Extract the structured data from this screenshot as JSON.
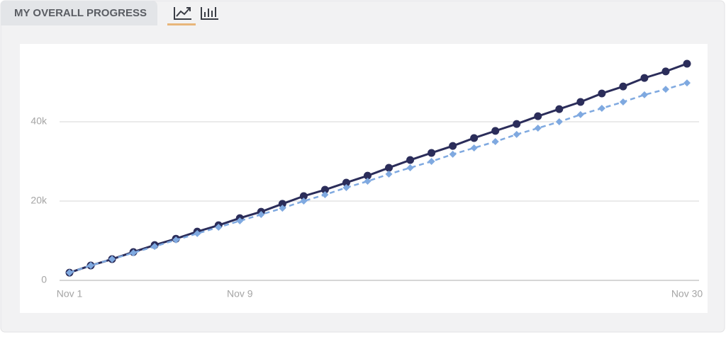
{
  "header": {
    "title": "MY OVERALL PROGRESS"
  },
  "chart_data": {
    "type": "line",
    "categories": [
      "Nov 1",
      null,
      null,
      null,
      null,
      null,
      null,
      null,
      "Nov 9",
      null,
      null,
      null,
      null,
      null,
      null,
      null,
      null,
      null,
      null,
      null,
      null,
      null,
      null,
      null,
      null,
      null,
      null,
      null,
      null,
      "Nov 30"
    ],
    "series": [
      {
        "color": "#2b2d5a",
        "marker": "circle",
        "dashed": false,
        "values": [
          1950,
          3750,
          5350,
          7150,
          8900,
          10500,
          12300,
          13900,
          15700,
          17300,
          19300,
          21250,
          22850,
          24650,
          26400,
          28400,
          30350,
          32150,
          33900,
          35900,
          37700,
          39450,
          41400,
          43200,
          45000,
          47150,
          48900,
          51050,
          52700,
          54650
        ]
      },
      {
        "color": "#7fa9e0",
        "marker": "diamond",
        "dashed": true,
        "values": [
          1950,
          3750,
          5350,
          6950,
          8550,
          10200,
          11800,
          13400,
          15000,
          16600,
          18200,
          20000,
          21600,
          23400,
          25000,
          26800,
          28400,
          30000,
          31800,
          33400,
          35000,
          36800,
          38400,
          40000,
          41800,
          43400,
          45000,
          46800,
          48200,
          49800
        ]
      }
    ],
    "ylim": [
      0,
      60000
    ],
    "yticks": [
      0,
      {
        "value": 20000,
        "label": "20k"
      },
      {
        "value": 40000,
        "label": "40k"
      }
    ],
    "grid": true
  }
}
